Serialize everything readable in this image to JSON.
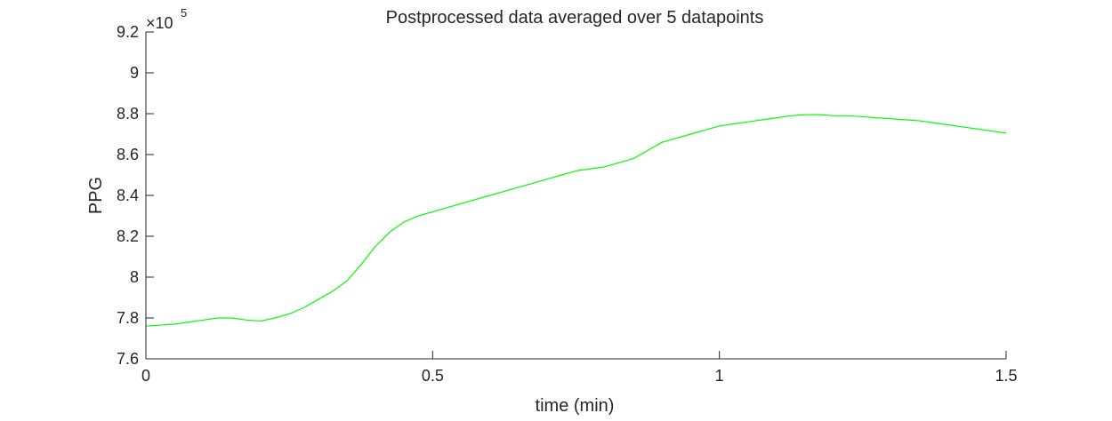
{
  "chart_data": {
    "type": "line",
    "title": "Postprocessed data averaged over 5 datapoints",
    "xlabel": "time (min)",
    "ylabel": "PPG",
    "xlim": [
      0,
      1.5
    ],
    "ylim": [
      760000,
      920000
    ],
    "x_ticks": [
      0,
      0.5,
      1,
      1.5
    ],
    "x_tick_labels": [
      "0",
      "0.5",
      "1",
      "1.5"
    ],
    "y_ticks": [
      760000,
      780000,
      800000,
      820000,
      840000,
      860000,
      880000,
      900000,
      920000
    ],
    "y_tick_labels": [
      "7.6",
      "7.8",
      "8",
      "8.2",
      "8.4",
      "8.6",
      "8.8",
      "9",
      "9.2"
    ],
    "y_exponent_base": "×10",
    "y_exponent_power": "5",
    "grid": false,
    "line_color": "#00ff00",
    "series": [
      {
        "x": [
          0,
          0.025,
          0.05,
          0.075,
          0.1,
          0.125,
          0.15,
          0.175,
          0.2,
          0.225,
          0.25,
          0.275,
          0.3,
          0.325,
          0.35,
          0.375,
          0.4,
          0.425,
          0.45,
          0.475,
          0.5,
          0.525,
          0.55,
          0.575,
          0.6,
          0.625,
          0.65,
          0.675,
          0.7,
          0.725,
          0.75,
          0.775,
          0.8,
          0.825,
          0.85,
          0.875,
          0.9,
          0.925,
          0.95,
          0.975,
          1.0,
          1.025,
          1.05,
          1.075,
          1.1,
          1.125,
          1.15,
          1.175,
          1.2,
          1.225,
          1.25,
          1.275,
          1.3,
          1.325,
          1.35,
          1.375,
          1.4,
          1.425,
          1.45,
          1.475,
          1.5
        ],
        "y": [
          776000,
          776500,
          777000,
          778000,
          779000,
          780000,
          780000,
          779000,
          778500,
          780000,
          782000,
          785000,
          789000,
          793000,
          798000,
          806000,
          815000,
          822000,
          827000,
          830000,
          832000,
          834000,
          836000,
          838000,
          840000,
          842000,
          844000,
          846000,
          848000,
          850000,
          852000,
          853000,
          854000,
          856000,
          858000,
          862000,
          866000,
          868000,
          870000,
          872000,
          874000,
          875000,
          876000,
          877000,
          878000,
          879000,
          879500,
          879500,
          879000,
          879000,
          878500,
          878000,
          877500,
          877000,
          876500,
          875500,
          874500,
          873500,
          872500,
          871500,
          870500
        ]
      }
    ]
  }
}
